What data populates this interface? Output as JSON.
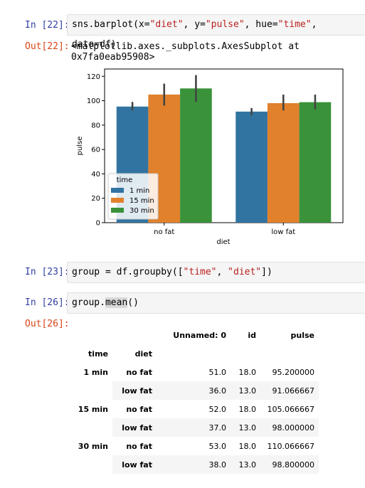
{
  "cells": {
    "c22": {
      "in_prompt": "In [22]:",
      "out_prompt": "Out[22]:",
      "code_parts": [
        "sns.barplot(x=",
        "\"diet\"",
        ", y=",
        "\"pulse\"",
        ", hue=",
        "\"time\"",
        ", data=df)"
      ],
      "output_text": "<matplotlib.axes._subplots.AxesSubplot at 0x7fa0eab95908>"
    },
    "c23": {
      "in_prompt": "In [23]:",
      "code_parts": [
        "group = df.groupby([",
        "\"time\"",
        ", ",
        "\"diet\"",
        "])"
      ]
    },
    "c26": {
      "in_prompt": "In [26]:",
      "out_prompt": "Out[26]:",
      "code_parts": [
        "group.",
        "mean",
        "()"
      ]
    }
  },
  "chart_data": {
    "type": "bar",
    "categories": [
      "no fat",
      "low fat"
    ],
    "series": [
      {
        "name": "1 min",
        "color": "#3274a1",
        "values": [
          95.2,
          91.07
        ],
        "ci": [
          [
            92,
            99
          ],
          [
            88,
            94
          ]
        ]
      },
      {
        "name": "15 min",
        "color": "#e1812c",
        "values": [
          105.07,
          98.0
        ],
        "ci": [
          [
            96,
            114
          ],
          [
            92,
            105
          ]
        ]
      },
      {
        "name": "30 min",
        "color": "#3a923a",
        "values": [
          110.07,
          98.8
        ],
        "ci": [
          [
            99,
            121
          ],
          [
            93,
            105
          ]
        ]
      }
    ],
    "xlabel": "diet",
    "ylabel": "pulse",
    "ylim": [
      0,
      126
    ],
    "yticks": [
      0,
      20,
      40,
      60,
      80,
      100,
      120
    ],
    "legend_title": "time",
    "legend_position": "lower-left"
  },
  "table": {
    "columns": [
      "Unnamed: 0",
      "id",
      "pulse"
    ],
    "index_names": [
      "time",
      "diet"
    ],
    "rows": [
      {
        "time": "1 min",
        "diet": "no fat",
        "values": [
          "51.0",
          "18.0",
          "95.200000"
        ]
      },
      {
        "time": "",
        "diet": "low fat",
        "values": [
          "36.0",
          "13.0",
          "91.066667"
        ]
      },
      {
        "time": "15 min",
        "diet": "no fat",
        "values": [
          "52.0",
          "18.0",
          "105.066667"
        ]
      },
      {
        "time": "",
        "diet": "low fat",
        "values": [
          "37.0",
          "13.0",
          "98.000000"
        ]
      },
      {
        "time": "30 min",
        "diet": "no fat",
        "values": [
          "53.0",
          "18.0",
          "110.066667"
        ]
      },
      {
        "time": "",
        "diet": "low fat",
        "values": [
          "38.0",
          "13.0",
          "98.800000"
        ]
      }
    ]
  }
}
